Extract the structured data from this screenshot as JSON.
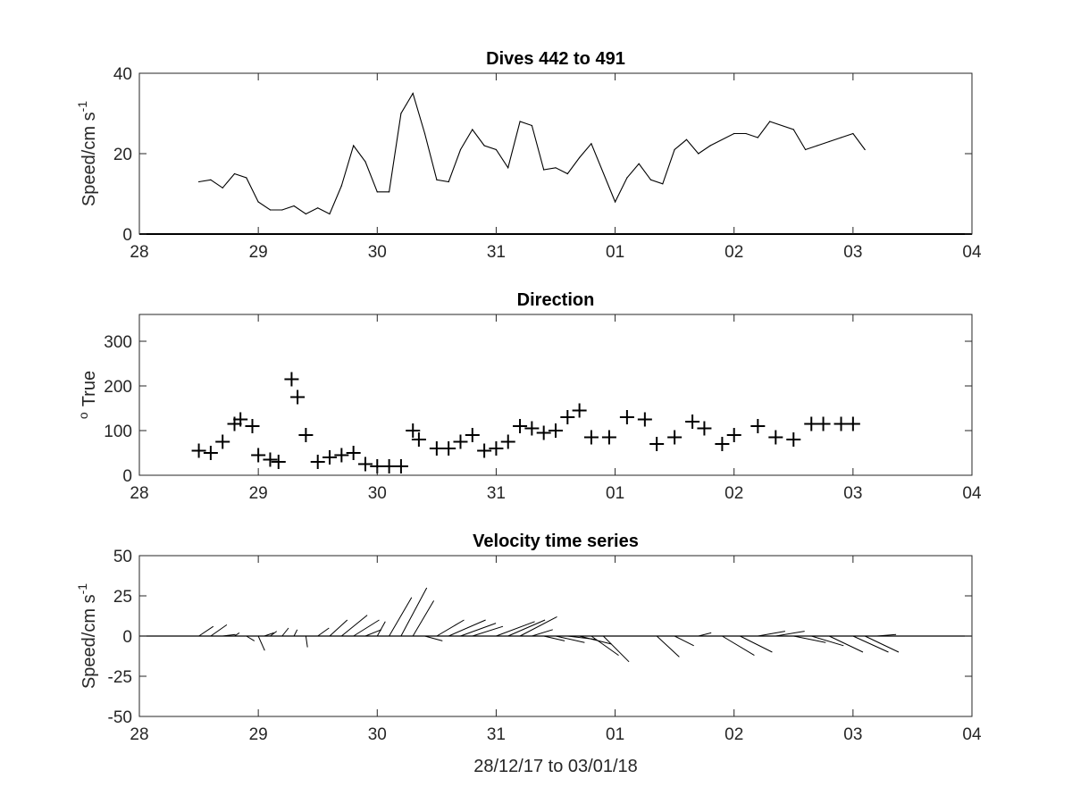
{
  "chart_data": [
    {
      "type": "line",
      "title": "Dives 442 to 491",
      "ylabel_text": "Speed/cm s",
      "ylabel_sup": "-1",
      "xlabel": "",
      "x_tick_labels": [
        "28",
        "29",
        "30",
        "31",
        "01",
        "02",
        "03",
        "04"
      ],
      "xlim": [
        0,
        7
      ],
      "ylim": [
        0,
        40
      ],
      "y_ticks": [
        0,
        20,
        40
      ],
      "grid": false,
      "series": [
        {
          "x": [
            0.5,
            0.6,
            0.7,
            0.8,
            0.9,
            1.0,
            1.1,
            1.2,
            1.3,
            1.4,
            1.5,
            1.6,
            1.7,
            1.8,
            1.9,
            2.0,
            2.1,
            2.2,
            2.3,
            2.4,
            2.5,
            2.6,
            2.7,
            2.8,
            2.9,
            3.0,
            3.1,
            3.2,
            3.3,
            3.4,
            3.5,
            3.6,
            3.7,
            3.8,
            4.0,
            4.1,
            4.2,
            4.3,
            4.4,
            4.5,
            4.6,
            4.7,
            4.8,
            5.0,
            5.1,
            5.2,
            5.3,
            5.5,
            5.6,
            5.7,
            5.8,
            5.9,
            6.0,
            6.1
          ],
          "y": [
            13,
            13.5,
            11.5,
            15,
            14,
            8,
            6,
            6,
            7,
            5,
            6.5,
            5,
            12,
            22,
            18,
            10.5,
            10.5,
            30,
            35,
            25,
            13.5,
            13,
            21,
            26,
            22,
            21,
            16.5,
            28,
            27,
            16,
            16.5,
            15,
            19,
            22.5,
            8,
            14,
            17.5,
            13.5,
            12.5,
            21,
            23.5,
            20,
            22,
            25,
            25,
            24,
            28,
            26,
            21,
            22,
            23,
            24,
            25,
            21
          ]
        }
      ]
    },
    {
      "type": "scatter",
      "title": "Direction",
      "ylabel_text": "True",
      "ylabel_sup": "o",
      "xlabel": "",
      "x_tick_labels": [
        "28",
        "29",
        "30",
        "31",
        "01",
        "02",
        "03",
        "04"
      ],
      "xlim": [
        0,
        7
      ],
      "ylim": [
        0,
        360
      ],
      "y_ticks": [
        0,
        100,
        200,
        300
      ],
      "grid": false,
      "marker": "+",
      "series": [
        {
          "x": [
            0.5,
            0.6,
            0.7,
            0.8,
            0.85,
            0.95,
            1.0,
            1.1,
            1.17,
            1.28,
            1.33,
            1.4,
            1.5,
            1.6,
            1.7,
            1.8,
            1.9,
            2.0,
            2.1,
            2.2,
            2.3,
            2.35,
            2.5,
            2.6,
            2.7,
            2.8,
            2.9,
            3.0,
            3.1,
            3.2,
            3.3,
            3.4,
            3.5,
            3.6,
            3.7,
            3.8,
            3.95,
            4.1,
            4.25,
            4.35,
            4.5,
            4.65,
            4.75,
            4.9,
            5.0,
            5.2,
            5.35,
            5.5,
            5.65,
            5.75,
            5.9,
            6.0
          ],
          "y": [
            55,
            50,
            75,
            115,
            125,
            110,
            45,
            35,
            30,
            215,
            175,
            90,
            30,
            40,
            45,
            50,
            25,
            20,
            20,
            20,
            100,
            80,
            60,
            60,
            75,
            90,
            55,
            60,
            75,
            110,
            105,
            95,
            100,
            130,
            145,
            85,
            85,
            130,
            125,
            70,
            85,
            120,
            105,
            70,
            90,
            110,
            85,
            80,
            115,
            115,
            115,
            115
          ]
        }
      ]
    },
    {
      "type": "line",
      "subtype": "stick_plot",
      "title": "Velocity time series",
      "ylabel_text": "Speed/cm s",
      "ylabel_sup": "-1",
      "xlabel": "28/12/17 to 03/01/18",
      "x_tick_labels": [
        "28",
        "29",
        "30",
        "31",
        "01",
        "02",
        "03",
        "04"
      ],
      "xlim": [
        0,
        7
      ],
      "ylim": [
        -50,
        50
      ],
      "y_ticks": [
        -50,
        -25,
        0,
        25,
        50
      ],
      "grid": false,
      "sticks": [
        {
          "t": 0.5,
          "u": 9,
          "v": 6
        },
        {
          "t": 0.6,
          "u": 10,
          "v": 7
        },
        {
          "t": 0.7,
          "u": 8,
          "v": 1
        },
        {
          "t": 0.8,
          "u": 3,
          "v": 2
        },
        {
          "t": 0.9,
          "u": 5,
          "v": -3
        },
        {
          "t": 1.0,
          "u": 4,
          "v": -9
        },
        {
          "t": 1.05,
          "u": 6,
          "v": 2
        },
        {
          "t": 1.1,
          "u": 4,
          "v": 3
        },
        {
          "t": 1.2,
          "u": 4,
          "v": 5
        },
        {
          "t": 1.3,
          "u": 2,
          "v": 4
        },
        {
          "t": 1.4,
          "u": 1,
          "v": -7
        },
        {
          "t": 1.5,
          "u": 7,
          "v": 5
        },
        {
          "t": 1.6,
          "u": 11,
          "v": 10
        },
        {
          "t": 1.7,
          "u": 16,
          "v": 13
        },
        {
          "t": 1.8,
          "u": 16,
          "v": 10
        },
        {
          "t": 1.9,
          "u": 10,
          "v": 4
        },
        {
          "t": 2.0,
          "u": 5,
          "v": 9
        },
        {
          "t": 2.1,
          "u": 14,
          "v": 24
        },
        {
          "t": 2.2,
          "u": 16,
          "v": 30
        },
        {
          "t": 2.3,
          "u": 13,
          "v": 22
        },
        {
          "t": 2.4,
          "u": 11,
          "v": -3
        },
        {
          "t": 2.5,
          "u": 17,
          "v": 10
        },
        {
          "t": 2.6,
          "u": 23,
          "v": 10
        },
        {
          "t": 2.7,
          "u": 22,
          "v": 8
        },
        {
          "t": 2.8,
          "u": 19,
          "v": 6
        },
        {
          "t": 2.9,
          "u": 14,
          "v": 0
        },
        {
          "t": 3.0,
          "u": 24,
          "v": 9
        },
        {
          "t": 3.1,
          "u": 23,
          "v": 10
        },
        {
          "t": 3.2,
          "u": 23,
          "v": 12
        },
        {
          "t": 3.3,
          "u": 13,
          "v": 4
        },
        {
          "t": 3.4,
          "u": 13,
          "v": -3
        },
        {
          "t": 3.5,
          "u": 18,
          "v": -4
        },
        {
          "t": 3.6,
          "u": 17,
          "v": -2
        },
        {
          "t": 3.7,
          "u": 20,
          "v": -5
        },
        {
          "t": 3.8,
          "u": 17,
          "v": -12
        },
        {
          "t": 3.9,
          "u": 16,
          "v": -16
        },
        {
          "t": 4.35,
          "u": 14,
          "v": -13
        },
        {
          "t": 4.5,
          "u": 12,
          "v": -6
        },
        {
          "t": 4.7,
          "u": 8,
          "v": 2
        },
        {
          "t": 4.9,
          "u": 20,
          "v": -12
        },
        {
          "t": 5.05,
          "u": 20,
          "v": -10
        },
        {
          "t": 5.2,
          "u": 17,
          "v": 3
        },
        {
          "t": 5.35,
          "u": 18,
          "v": 3
        },
        {
          "t": 5.5,
          "u": 20,
          "v": -4
        },
        {
          "t": 5.65,
          "u": 20,
          "v": -6
        },
        {
          "t": 5.8,
          "u": 21,
          "v": -10
        },
        {
          "t": 6.0,
          "u": 22,
          "v": -10
        },
        {
          "t": 6.1,
          "u": 21,
          "v": -10
        },
        {
          "t": 6.2,
          "u": 12,
          "v": 1
        }
      ]
    }
  ]
}
